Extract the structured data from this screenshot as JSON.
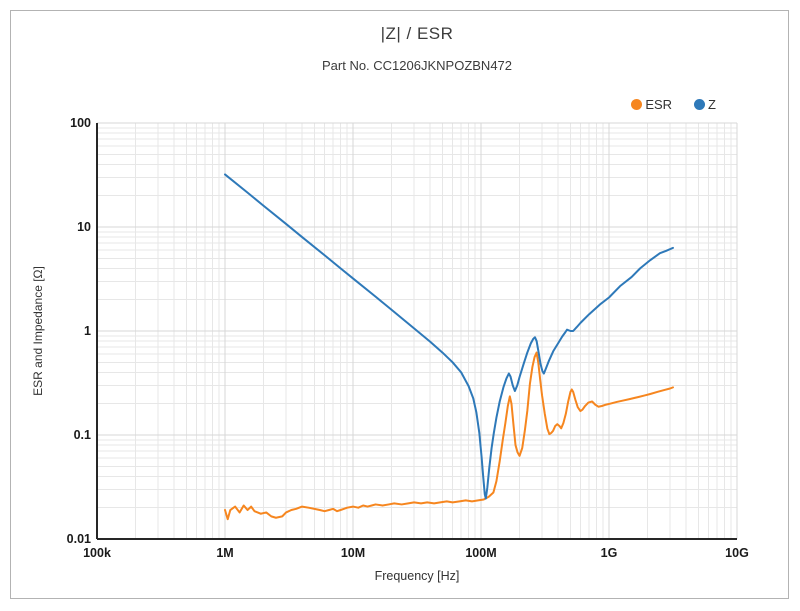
{
  "page": {
    "background": "#ffffff",
    "frame_border_color": "#b3b3b3"
  },
  "chart_data": {
    "type": "line",
    "title": "|Z| / ESR",
    "subtitle": "Part No. CC1206JKNPOZBN472",
    "xlabel": "Frequency [Hz]",
    "ylabel": "ESR and Impedance [Ω]",
    "x_scale": "log",
    "y_scale": "log",
    "xlim": [
      100000,
      10000000000
    ],
    "ylim": [
      0.01,
      100
    ],
    "x_ticks": [
      "100k",
      "1M",
      "10M",
      "100M",
      "1G",
      "10G"
    ],
    "y_ticks": [
      "100",
      "10",
      "1",
      "0.1",
      "0.01"
    ],
    "grid": true,
    "legend_position": "top-right",
    "colors": {
      "major_grid": "#d7d7d7",
      "minor_grid": "#e7e7e7",
      "axis_line": "#262626",
      "tick_label": "#1a1a1a",
      "text": "#333333"
    },
    "series": [
      {
        "name": "ESR",
        "color": "#f6861f",
        "points": [
          [
            1000000.0,
            0.019
          ],
          [
            1050000.0,
            0.0155
          ],
          [
            1100000.0,
            0.019
          ],
          [
            1200000.0,
            0.0205
          ],
          [
            1300000.0,
            0.018
          ],
          [
            1400000.0,
            0.021
          ],
          [
            1500000.0,
            0.019
          ],
          [
            1600000.0,
            0.0205
          ],
          [
            1700000.0,
            0.0185
          ],
          [
            1900000.0,
            0.0175
          ],
          [
            2100000.0,
            0.018
          ],
          [
            2300000.0,
            0.0165
          ],
          [
            2500000.0,
            0.016
          ],
          [
            2800000.0,
            0.0165
          ],
          [
            3000000.0,
            0.018
          ],
          [
            3300000.0,
            0.019
          ],
          [
            3600000.0,
            0.0195
          ],
          [
            4000000.0,
            0.0205
          ],
          [
            4500000.0,
            0.02
          ],
          [
            5000000.0,
            0.0195
          ],
          [
            5500000.0,
            0.019
          ],
          [
            6000000.0,
            0.0185
          ],
          [
            6500000.0,
            0.019
          ],
          [
            7000000.0,
            0.0195
          ],
          [
            7500000.0,
            0.0185
          ],
          [
            8000000.0,
            0.019
          ],
          [
            9000000.0,
            0.02
          ],
          [
            10000000.0,
            0.0205
          ],
          [
            11000000.0,
            0.02
          ],
          [
            12000000.0,
            0.021
          ],
          [
            13000000.0,
            0.0205
          ],
          [
            14000000.0,
            0.021
          ],
          [
            15000000.0,
            0.0215
          ],
          [
            17000000.0,
            0.021
          ],
          [
            19000000.0,
            0.0215
          ],
          [
            21000000.0,
            0.022
          ],
          [
            24000000.0,
            0.0215
          ],
          [
            27000000.0,
            0.022
          ],
          [
            30000000.0,
            0.0225
          ],
          [
            34000000.0,
            0.022
          ],
          [
            38000000.0,
            0.0225
          ],
          [
            43000000.0,
            0.022
          ],
          [
            48000000.0,
            0.0225
          ],
          [
            54000000.0,
            0.023
          ],
          [
            60000000.0,
            0.0225
          ],
          [
            68000000.0,
            0.023
          ],
          [
            76000000.0,
            0.0235
          ],
          [
            85000000.0,
            0.023
          ],
          [
            95000000.0,
            0.0235
          ],
          [
            105000000.0,
            0.024
          ],
          [
            115000000.0,
            0.0255
          ],
          [
            125000000.0,
            0.028
          ],
          [
            132000000.0,
            0.036
          ],
          [
            140000000.0,
            0.056
          ],
          [
            148000000.0,
            0.09
          ],
          [
            155000000.0,
            0.13
          ],
          [
            162000000.0,
            0.19
          ],
          [
            168000000.0,
            0.235
          ],
          [
            173000000.0,
            0.2
          ],
          [
            180000000.0,
            0.12
          ],
          [
            186000000.0,
            0.08
          ],
          [
            193000000.0,
            0.068
          ],
          [
            200000000.0,
            0.063
          ],
          [
            210000000.0,
            0.075
          ],
          [
            220000000.0,
            0.11
          ],
          [
            230000000.0,
            0.17
          ],
          [
            241000000.0,
            0.31
          ],
          [
            252000000.0,
            0.45
          ],
          [
            262000000.0,
            0.56
          ],
          [
            272000000.0,
            0.62
          ],
          [
            280000000.0,
            0.5
          ],
          [
            290000000.0,
            0.34
          ],
          [
            300000000.0,
            0.24
          ],
          [
            315000000.0,
            0.16
          ],
          [
            330000000.0,
            0.115
          ],
          [
            342000000.0,
            0.102
          ],
          [
            355000000.0,
            0.105
          ],
          [
            366000000.0,
            0.11
          ],
          [
            380000000.0,
            0.122
          ],
          [
            394000000.0,
            0.127
          ],
          [
            410000000.0,
            0.122
          ],
          [
            423000000.0,
            0.116
          ],
          [
            440000000.0,
            0.13
          ],
          [
            460000000.0,
            0.16
          ],
          [
            480000000.0,
            0.21
          ],
          [
            500000000.0,
            0.26
          ],
          [
            512000000.0,
            0.274
          ],
          [
            525000000.0,
            0.26
          ],
          [
            545000000.0,
            0.22
          ],
          [
            570000000.0,
            0.185
          ],
          [
            598000000.0,
            0.17
          ],
          [
            620000000.0,
            0.175
          ],
          [
            650000000.0,
            0.19
          ],
          [
            690000000.0,
            0.205
          ],
          [
            738000000.0,
            0.21
          ],
          [
            780000000.0,
            0.196
          ],
          [
            826000000.0,
            0.187
          ],
          [
            880000000.0,
            0.19
          ],
          [
            950000000.0,
            0.196
          ],
          [
            1020000000.0,
            0.2
          ],
          [
            1150000000.0,
            0.208
          ],
          [
            1300000000.0,
            0.215
          ],
          [
            1460000000.0,
            0.222
          ],
          [
            1700000000.0,
            0.232
          ],
          [
            1900000000.0,
            0.24
          ],
          [
            2100000000.0,
            0.248
          ],
          [
            2400000000.0,
            0.26
          ],
          [
            2740000000.0,
            0.272
          ],
          [
            3000000000.0,
            0.28
          ],
          [
            3160000000.0,
            0.287
          ]
        ]
      },
      {
        "name": "Z",
        "color": "#2e79b9",
        "points": [
          [
            1000000.0,
            32
          ],
          [
            1500000.0,
            21.4
          ],
          [
            2000000.0,
            16
          ],
          [
            3000000.0,
            10.7
          ],
          [
            4000000.0,
            8.0
          ],
          [
            6000000.0,
            5.35
          ],
          [
            8000000.0,
            4.0
          ],
          [
            10000000.0,
            3.2
          ],
          [
            15000000.0,
            2.14
          ],
          [
            20000000.0,
            1.6
          ],
          [
            30000000.0,
            1.06
          ],
          [
            40000000.0,
            0.79
          ],
          [
            50000000.0,
            0.62
          ],
          [
            60000000.0,
            0.5
          ],
          [
            70000000.0,
            0.4
          ],
          [
            80000000.0,
            0.295
          ],
          [
            87000000.0,
            0.225
          ],
          [
            92000000.0,
            0.165
          ],
          [
            97000000.0,
            0.105
          ],
          [
            101000000.0,
            0.062
          ],
          [
            104000000.0,
            0.04
          ],
          [
            107000000.0,
            0.027
          ],
          [
            109000000.0,
            0.0245
          ],
          [
            112000000.0,
            0.031
          ],
          [
            116000000.0,
            0.048
          ],
          [
            121000000.0,
            0.075
          ],
          [
            126000000.0,
            0.105
          ],
          [
            132000000.0,
            0.147
          ],
          [
            140000000.0,
            0.21
          ],
          [
            150000000.0,
            0.29
          ],
          [
            158000000.0,
            0.35
          ],
          [
            165000000.0,
            0.39
          ],
          [
            170000000.0,
            0.365
          ],
          [
            177000000.0,
            0.3
          ],
          [
            184000000.0,
            0.265
          ],
          [
            192000000.0,
            0.3
          ],
          [
            200000000.0,
            0.36
          ],
          [
            215000000.0,
            0.48
          ],
          [
            230000000.0,
            0.62
          ],
          [
            245000000.0,
            0.76
          ],
          [
            256000000.0,
            0.84
          ],
          [
            264000000.0,
            0.87
          ],
          [
            272000000.0,
            0.8
          ],
          [
            282000000.0,
            0.62
          ],
          [
            292000000.0,
            0.48
          ],
          [
            302000000.0,
            0.41
          ],
          [
            310000000.0,
            0.39
          ],
          [
            320000000.0,
            0.43
          ],
          [
            340000000.0,
            0.52
          ],
          [
            367000000.0,
            0.64
          ],
          [
            400000000.0,
            0.76
          ],
          [
            430000000.0,
            0.88
          ],
          [
            455000000.0,
            0.97
          ],
          [
            470000000.0,
            1.03
          ],
          [
            500000000.0,
            1.0
          ],
          [
            525000000.0,
            1.0
          ],
          [
            560000000.0,
            1.09
          ],
          [
            600000000.0,
            1.2
          ],
          [
            700000000.0,
            1.45
          ],
          [
            850000000.0,
            1.8
          ],
          [
            1000000000.0,
            2.1
          ],
          [
            1220000000.0,
            2.7
          ],
          [
            1500000000.0,
            3.3
          ],
          [
            1750000000.0,
            4.0
          ],
          [
            2100000000.0,
            4.8
          ],
          [
            2500000000.0,
            5.6
          ],
          [
            2800000000.0,
            5.9
          ],
          [
            3160000000.0,
            6.3
          ]
        ]
      }
    ]
  }
}
